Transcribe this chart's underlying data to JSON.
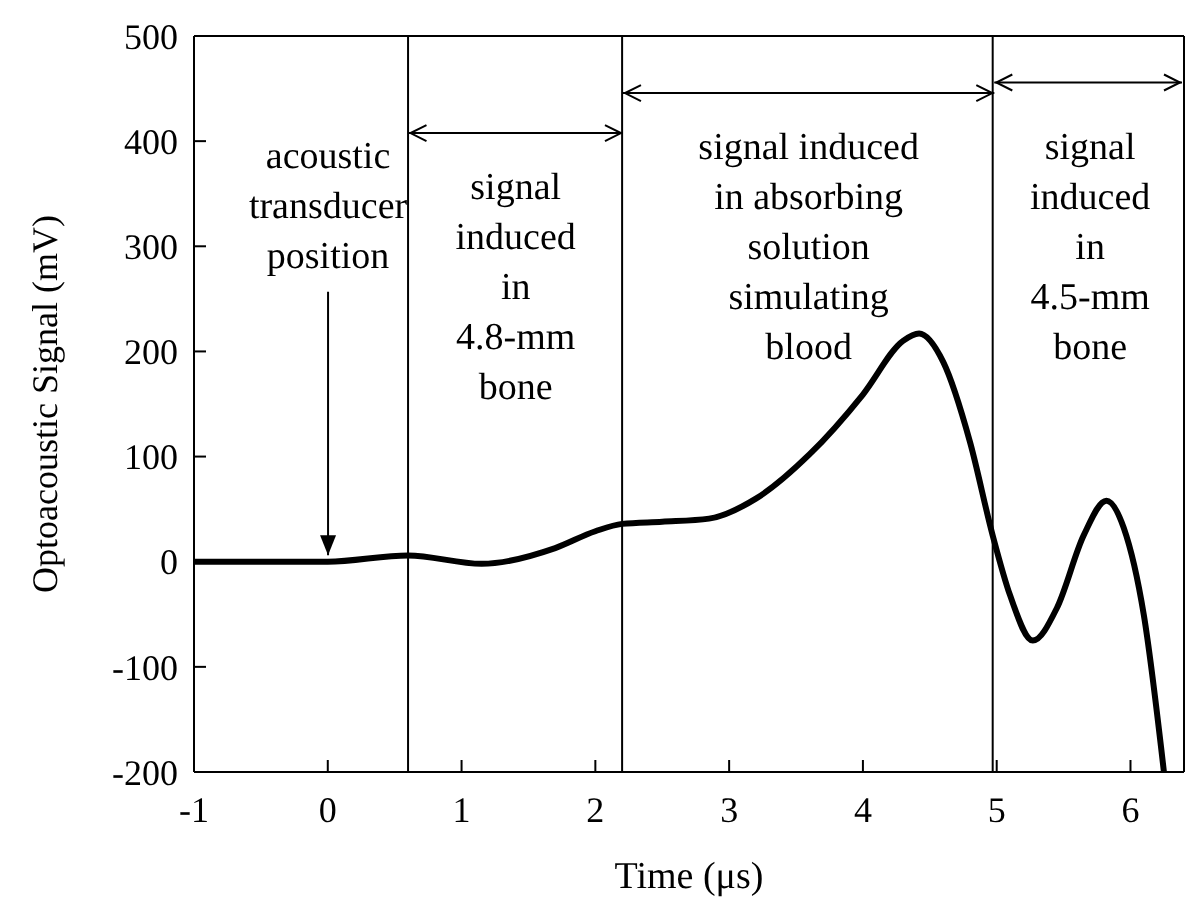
{
  "chart_data": {
    "type": "line",
    "xlabel": "Time (μs)",
    "ylabel": "Optoacoustic Signal (mV)",
    "xlim": [
      -1,
      6.4
    ],
    "ylim": [
      -200,
      500
    ],
    "xticks": [
      -1,
      0,
      1,
      2,
      3,
      4,
      5,
      6
    ],
    "yticks": [
      -200,
      -100,
      0,
      100,
      200,
      300,
      400,
      500
    ],
    "marker": "none",
    "line_style": "solid",
    "series": [
      {
        "color": "#000000",
        "x": [
          -1,
          0,
          0.6,
          1.15,
          1.7,
          2.0,
          2.2,
          2.5,
          2.85,
          3.2,
          3.6,
          4.0,
          4.3,
          4.42,
          4.6,
          4.8,
          4.97,
          5.1,
          5.27,
          5.45,
          5.65,
          5.82,
          5.95,
          6.1,
          6.25
        ],
        "values": [
          0,
          0,
          6,
          -2,
          13,
          29,
          36,
          38,
          41,
          60,
          102,
          159,
          210,
          217,
          190,
          114,
          25,
          -32,
          -75,
          -44,
          25,
          58,
          32,
          -51,
          -200
        ]
      }
    ],
    "ref_lines": [
      {
        "axis": "x",
        "value": 0.6,
        "color": "#000000"
      },
      {
        "axis": "x",
        "value": 2.2,
        "color": "#000000"
      },
      {
        "axis": "x",
        "value": 4.97,
        "color": "#000000"
      }
    ],
    "annotations": [
      {
        "text": "acoustic\ntransducer\nposition",
        "x": 0,
        "y": 0
      },
      "signal\ninduced\nin\n4.8-mm\nbone",
      "signal induced\nin absorbing\nsolution\nsimulating\nblood",
      "signal\ninduced\nin\n4.5-mm\nbone"
    ]
  }
}
